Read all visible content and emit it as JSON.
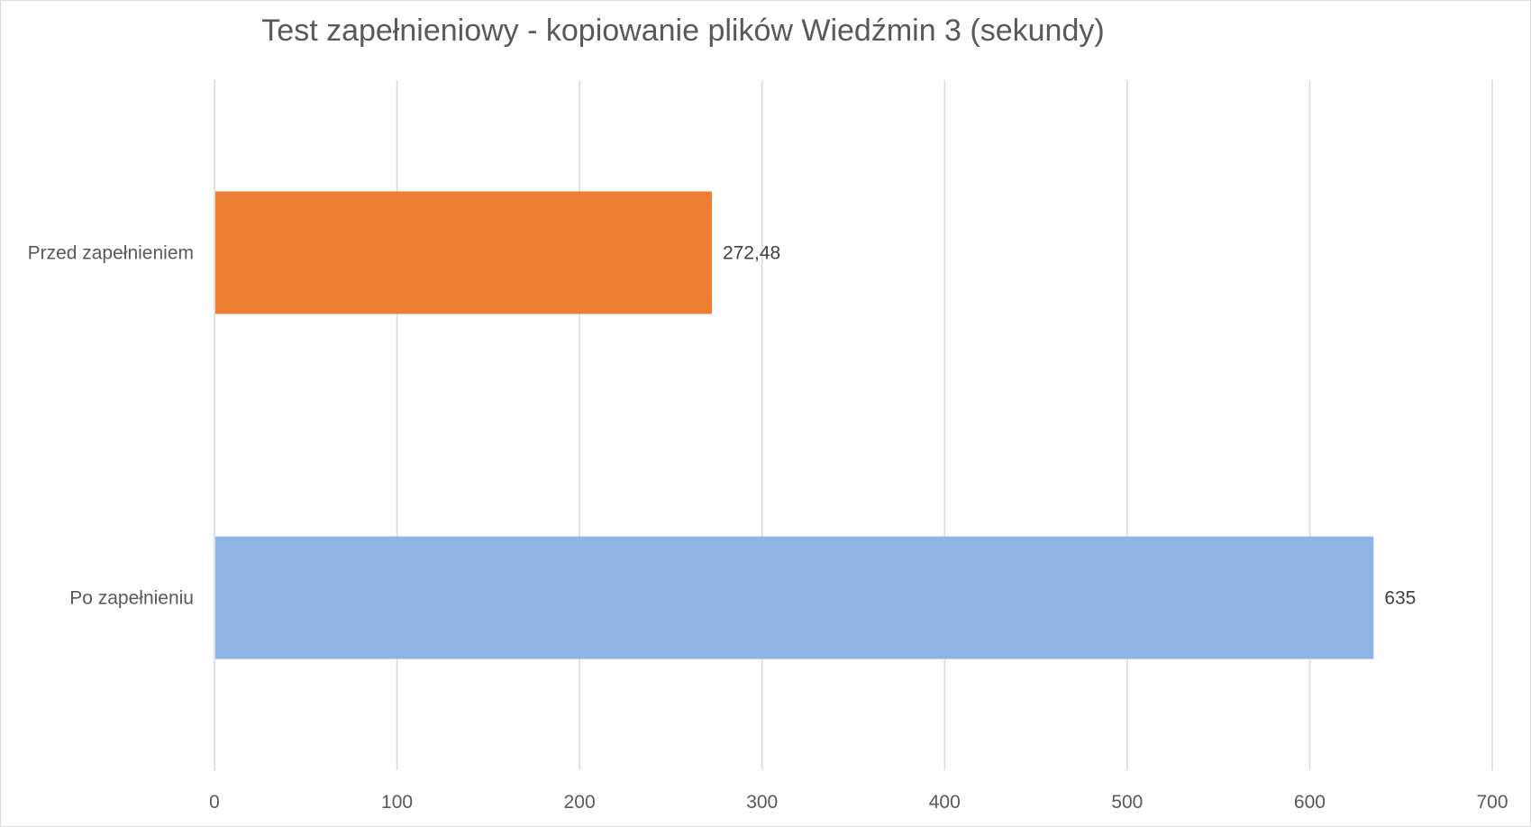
{
  "chart_data": {
    "type": "bar",
    "orientation": "horizontal",
    "title": "Test zapełnieniowy - kopiowanie plików Wiedźmin 3 (sekundy)",
    "categories": [
      "Przed zapełnieniem",
      "Po zapełnieniu"
    ],
    "values": [
      272.48,
      635
    ],
    "value_labels": [
      "272,48",
      "635"
    ],
    "colors": [
      "#ED7D31",
      "#8FB3E2"
    ],
    "xlim": [
      0,
      700
    ],
    "xticks": [
      0,
      100,
      200,
      300,
      400,
      500,
      600,
      700
    ],
    "grid": true,
    "legend": "none"
  }
}
